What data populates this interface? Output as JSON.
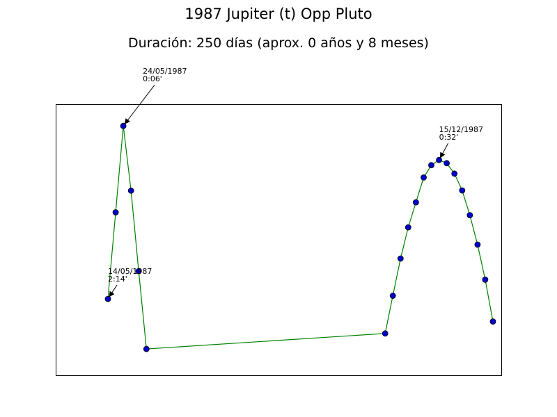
{
  "chart_data": {
    "type": "line",
    "title": "1987 Jupiter (t) Opp Pluto",
    "subtitle": "Duración: 250 días (aprox. 0 años y 8 meses)",
    "xlabel": "",
    "ylabel": "",
    "axes_ticks": false,
    "grid": false,
    "line_color": "#008000",
    "marker_color": "#0000cc",
    "marker_edge": "#000000",
    "x": [
      0,
      1,
      2,
      3,
      4,
      5,
      36,
      37,
      38,
      39,
      40,
      41,
      42,
      43,
      44,
      45,
      46,
      47,
      48,
      49,
      50
    ],
    "ylim": [
      0,
      100
    ],
    "values": [
      25.7,
      61.3,
      96.8,
      70.2,
      37.1,
      5.1,
      11.5,
      27.0,
      42.3,
      55.1,
      65.4,
      75.6,
      80.7,
      82.8,
      81.5,
      77.2,
      70.3,
      60.1,
      48.0,
      33.6,
      16.4
    ],
    "annotations": [
      {
        "point_index": 0,
        "line1": "14/05/1987",
        "line2": "2:14'"
      },
      {
        "point_index": 2,
        "line1": "24/05/1987",
        "line2": "0:06'"
      },
      {
        "point_index": 13,
        "line1": "15/12/1987",
        "line2": "0:32'"
      }
    ]
  }
}
